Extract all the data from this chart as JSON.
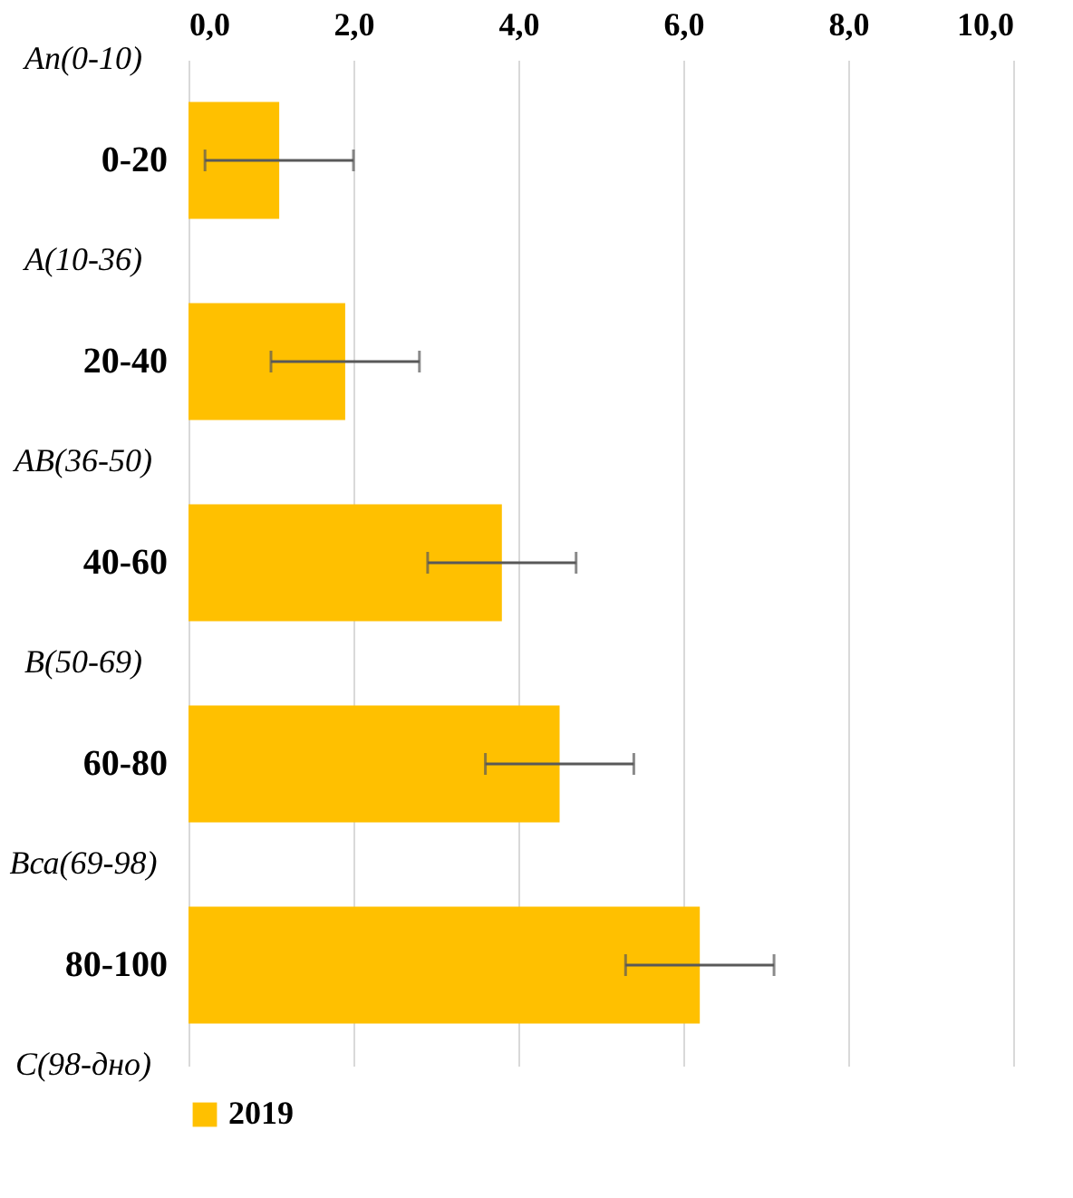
{
  "chart_data": {
    "type": "bar",
    "orientation": "horizontal",
    "categories": [
      "0-20",
      "20-40",
      "40-60",
      "60-80",
      "80-100"
    ],
    "series": [
      {
        "name": "2019",
        "color": "#ffc000",
        "values": [
          1.1,
          1.9,
          3.8,
          4.5,
          6.2
        ],
        "errors": [
          0.9,
          0.9,
          0.9,
          0.9,
          0.9
        ]
      }
    ],
    "annotations": [
      "Ап(0-10)",
      "А(10-36)",
      "АВ(36-50)",
      "В(50-69)",
      "Вса(69-98)",
      "С(98-дно)"
    ],
    "xlim": [
      0,
      10
    ],
    "xticks": [
      {
        "value": 0,
        "label": "0,0"
      },
      {
        "value": 2,
        "label": "2,0"
      },
      {
        "value": 4,
        "label": "4,0"
      },
      {
        "value": 6,
        "label": "6,0"
      },
      {
        "value": 8,
        "label": "8,0"
      },
      {
        "value": 10,
        "label": "10,0"
      }
    ],
    "grid": "x",
    "legend": "bottom"
  }
}
